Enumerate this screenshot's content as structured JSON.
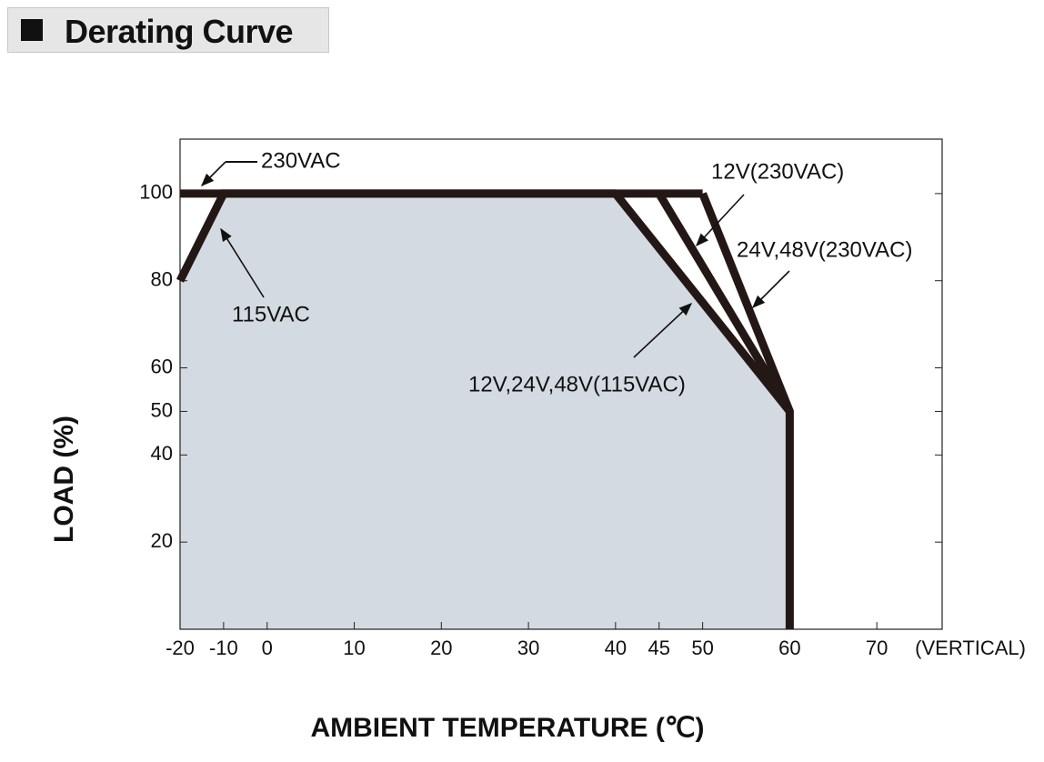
{
  "chart_data": {
    "type": "line",
    "title": "Derating Curve",
    "x_label": "AMBIENT TEMPERATURE (℃)",
    "y_label": "LOAD (%)",
    "x_note": "(VERTICAL)",
    "xlim": [
      -20,
      77.5
    ],
    "ylim": [
      0,
      112.5
    ],
    "xticks": [
      -20,
      -10,
      0,
      10,
      20,
      30,
      40,
      45,
      50,
      60,
      70
    ],
    "yticks": [
      20,
      40,
      50,
      60,
      80,
      100
    ],
    "line_color": "#231815",
    "fill_color": "#d3dae1",
    "series": [
      {
        "name": "230VAC",
        "x": [
          -20,
          50
        ],
        "values": [
          100,
          100
        ]
      },
      {
        "name": "115VAC",
        "x": [
          -20,
          -10,
          40
        ],
        "values": [
          80,
          100,
          100
        ]
      },
      {
        "name": "12V(230VAC)",
        "x": [
          45,
          60
        ],
        "values": [
          100,
          50
        ]
      },
      {
        "name": "24V,48V(230VAC)",
        "x": [
          50,
          60,
          60
        ],
        "values": [
          100,
          50,
          0
        ]
      },
      {
        "name": "12V,24V,48V(115VAC)",
        "x": [
          40,
          60
        ],
        "values": [
          100,
          50
        ]
      }
    ]
  }
}
